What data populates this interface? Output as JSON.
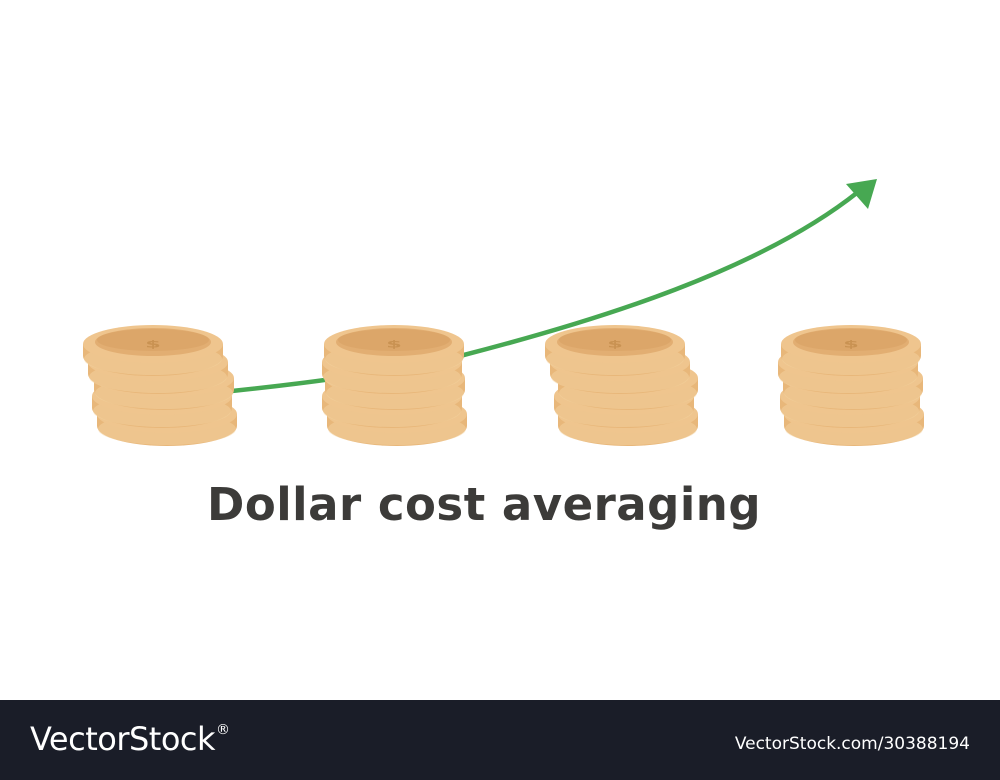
{
  "caption": "Dollar cost averaging",
  "watermark": {
    "logo_text": "VectorStock",
    "logo_mark": "®",
    "image_id": "VectorStock.com/30388194"
  },
  "icons": {
    "coin": "dollar-coin-stack-icon",
    "arrow": "growth-arrow-icon"
  },
  "colors": {
    "arrow": "#47a852",
    "coin_face": "#e2ae72",
    "coin_rim": "#efc58e",
    "coin_edge": "#f3d29f",
    "caption": "#3c3b39",
    "footer_bg": "#1a1d28"
  }
}
